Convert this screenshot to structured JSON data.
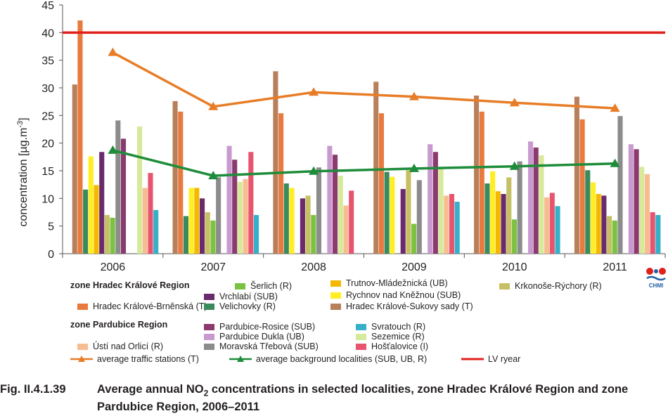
{
  "chart_data": {
    "type": "bar",
    "categories": [
      "2006",
      "2007",
      "2008",
      "2009",
      "2010",
      "2011"
    ],
    "ylabel": "concentration [µg.m",
    "ylabel_sup": "-3",
    "ylabel_end": "]",
    "ylim": [
      0,
      45
    ],
    "yticks": [
      0,
      5,
      10,
      15,
      20,
      25,
      30,
      35,
      40,
      45
    ],
    "grid": false,
    "series": [
      {
        "name": "Krkonoše-Rýchory (R)",
        "color": "#c7bf63",
        "values": [
          null,
          null,
          null,
          null,
          null,
          null
        ]
      },
      {
        "name": "Hradec Králové-Sukovy sady (T)",
        "color": "#b8805a",
        "values": [
          30.6,
          27.6,
          33.0,
          31.1,
          28.6,
          28.4
        ]
      },
      {
        "name": "Hradec Králové-Brněnská (T)",
        "color": "#e97a3f",
        "values": [
          42.2,
          25.7,
          25.4,
          25.4,
          25.7,
          24.3
        ]
      },
      {
        "name": "Velichovky (R)",
        "color": "#3a8a5e",
        "values": [
          11.6,
          6.8,
          12.7,
          14.8,
          12.7,
          15.1
        ]
      },
      {
        "name": "Rychnov nad Kněžnou (SUB)",
        "color": "#ffee22",
        "values": [
          17.6,
          11.9,
          11.9,
          13.9,
          14.9,
          12.9
        ]
      },
      {
        "name": "Trutnov-Mládežnická (UB)",
        "color": "#f5b800",
        "values": [
          12.4,
          11.9,
          null,
          null,
          11.3,
          10.8
        ]
      },
      {
        "name": "Vrchlabí (SUB)",
        "color": "#6a2a6e",
        "values": [
          18.4,
          10.0,
          10.0,
          11.7,
          10.8,
          10.5
        ]
      },
      {
        "name": "Krkonoše-Rýchory (R)",
        "color": "#c7bf63",
        "values": [
          7.0,
          7.5,
          10.5,
          15.1,
          13.8,
          6.8
        ]
      },
      {
        "name": "Šerlich (R)",
        "color": "#7cc242",
        "values": [
          6.5,
          6.0,
          7.0,
          5.4,
          6.2,
          6.0
        ]
      },
      {
        "name": "Moravská Třebová (SUB)",
        "color": "#8c8c8c",
        "values": [
          24.1,
          13.8,
          15.6,
          13.3,
          16.7,
          24.9
        ]
      },
      {
        "name": "Pardubice-Rosice (SUB)",
        "color": "#8a3a6e",
        "values": [
          20.8,
          null,
          null,
          null,
          null,
          null
        ]
      },
      {
        "name": "Pardubice Dukla (UB)",
        "color": "#c99ad0",
        "values": [
          null,
          19.5,
          19.5,
          19.8,
          20.3,
          19.8
        ]
      },
      {
        "name": "Pardubice-Rosice (SUB)",
        "color": "#8a3a6e",
        "values": [
          null,
          17.0,
          17.9,
          18.4,
          19.2,
          18.9
        ]
      },
      {
        "name": "Sezemice (R)",
        "color": "#d6ea9a",
        "values": [
          23.0,
          13.0,
          14.1,
          15.4,
          17.8,
          15.7
        ]
      },
      {
        "name": "Ústí nad Orlicí (R)",
        "color": "#f7bd90",
        "values": [
          11.9,
          13.5,
          8.7,
          10.5,
          10.2,
          14.4
        ]
      },
      {
        "name": "Hošťalovice (I)",
        "color": "#e8546e",
        "values": [
          14.6,
          18.4,
          11.4,
          10.8,
          11.0,
          7.5
        ]
      },
      {
        "name": "Svratouch (R)",
        "color": "#36b0c8",
        "values": [
          7.9,
          7.0,
          null,
          9.4,
          8.6,
          7.0
        ]
      }
    ],
    "lines": [
      {
        "name": "average traffic stations (T)",
        "color": "#e87d27",
        "marker": "triangle",
        "values": [
          36.4,
          26.6,
          29.2,
          28.4,
          27.3,
          26.3
        ]
      },
      {
        "name": "average background localities  (SUB, UB, R)",
        "color": "#1e8c3a",
        "marker": "triangle",
        "values": [
          18.7,
          14.1,
          14.9,
          15.4,
          15.8,
          16.3
        ]
      }
    ],
    "limit": {
      "name": "LV ryear",
      "color": "#e0201b",
      "value": 40
    }
  },
  "legend": {
    "zone1": "zone Hradec Králové Region",
    "zone2": "zone Pardubice Region",
    "items": [
      {
        "label": "Šerlich (R)",
        "color": "#7cc242"
      },
      {
        "label": "Trutnov-Mládežnická (UB)",
        "color": "#f5b800"
      },
      {
        "label": "Krkonoše-Rýchory (R)",
        "color": "#c7bf63"
      },
      {
        "label": "Vrchlabí (SUB)",
        "color": "#6a2a6e"
      },
      {
        "label": "Rychnov nad Kněžnou (SUB)",
        "color": "#ffee22"
      },
      {
        "label": "Hradec Králové-Brněnská (T)",
        "color": "#e97a3f"
      },
      {
        "label": "Velichovky (R)",
        "color": "#3a8a5e"
      },
      {
        "label": "Hradec Králové-Sukovy sady (T)",
        "color": "#b8805a"
      },
      {
        "label": "Pardubice-Rosice (SUB)",
        "color": "#8a3a6e"
      },
      {
        "label": "Svratouch (R)",
        "color": "#36b0c8"
      },
      {
        "label": "Pardubice Dukla (UB)",
        "color": "#c99ad0"
      },
      {
        "label": "Sezemice (R)",
        "color": "#d6ea9a"
      },
      {
        "label": "Ústí nad Orlicí (R)",
        "color": "#f7bd90"
      },
      {
        "label": "Moravská Třebová (SUB)",
        "color": "#8c8c8c"
      },
      {
        "label": "Hošťalovice (I)",
        "color": "#e8546e"
      }
    ],
    "line_items": [
      {
        "label": "average traffic stations (T)",
        "color": "#e87d27"
      },
      {
        "label": "average background localities  (SUB, UB, R)",
        "color": "#1e8c3a"
      },
      {
        "label": "LV ryear",
        "color": "#e0201b"
      }
    ]
  },
  "caption": {
    "number": "Fig. II.4.1.39",
    "text_a": "Average annual NO",
    "text_sub": "2",
    "text_b": " concentrations in selected localities, zone Hradec Králové Region and zone Pardubice Region, 2006–2011"
  },
  "logo": {
    "text": "CHMI",
    "icon": "chmi-logo-icon"
  }
}
